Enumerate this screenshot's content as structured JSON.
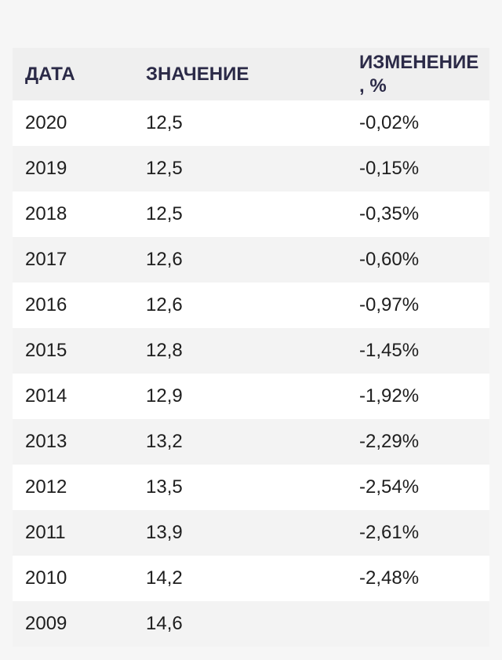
{
  "table": {
    "headers": {
      "date": "ДАТА",
      "value": "ЗНАЧЕНИЕ",
      "change_line1": "ИЗМЕНЕНИЕ",
      "change_line2": ", %"
    },
    "rows": [
      {
        "date": "2020",
        "value": "12,5",
        "change": "-0,02%"
      },
      {
        "date": "2019",
        "value": "12,5",
        "change": "-0,15%"
      },
      {
        "date": "2018",
        "value": "12,5",
        "change": "-0,35%"
      },
      {
        "date": "2017",
        "value": "12,6",
        "change": "-0,60%"
      },
      {
        "date": "2016",
        "value": "12,6",
        "change": "-0,97%"
      },
      {
        "date": "2015",
        "value": "12,8",
        "change": "-1,45%"
      },
      {
        "date": "2014",
        "value": "12,9",
        "change": "-1,92%"
      },
      {
        "date": "2013",
        "value": "13,2",
        "change": "-2,29%"
      },
      {
        "date": "2012",
        "value": "13,5",
        "change": "-2,54%"
      },
      {
        "date": "2011",
        "value": "13,9",
        "change": "-2,61%"
      },
      {
        "date": "2010",
        "value": "14,2",
        "change": "-2,48%"
      },
      {
        "date": "2009",
        "value": "14,6",
        "change": ""
      }
    ]
  }
}
